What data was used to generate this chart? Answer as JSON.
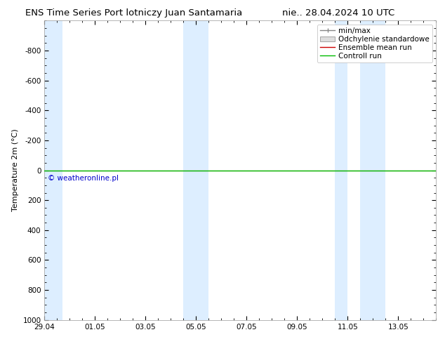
{
  "title_left": "ENS Time Series Port lotniczy Juan Santamaria",
  "title_right": "nie.. 28.04.2024 10 UTC",
  "ylabel": "Temperature 2m (°C)",
  "ylim_top": -1000,
  "ylim_bottom": 1000,
  "yticks": [
    -800,
    -600,
    -400,
    -200,
    0,
    200,
    400,
    600,
    800,
    1000
  ],
  "xtick_labels": [
    "29.04",
    "01.05",
    "03.05",
    "05.05",
    "07.05",
    "09.05",
    "11.05",
    "13.05"
  ],
  "xtick_positions": [
    0,
    2,
    4,
    6,
    8,
    10,
    12,
    14
  ],
  "xlim": [
    0,
    15.5
  ],
  "shaded_bands": [
    [
      -0.1,
      0.7
    ],
    [
      5.5,
      6.0
    ],
    [
      6.0,
      6.5
    ],
    [
      11.5,
      12.0
    ],
    [
      12.5,
      13.5
    ]
  ],
  "shaded_color": "#ddeeff",
  "green_line_color": "#00bb00",
  "red_line_color": "#cc0000",
  "background_color": "#ffffff",
  "copyright_text": "© weatheronline.pl",
  "copyright_color": "#0000cc",
  "legend_entries": [
    "min/max",
    "Odchylenie standardowe",
    "Ensemble mean run",
    "Controll run"
  ],
  "legend_line_color": "#888888",
  "legend_fill_color": "#dddddd",
  "legend_red": "#cc0000",
  "legend_green": "#00bb00",
  "title_fontsize": 9.5,
  "axis_label_fontsize": 8,
  "tick_fontsize": 7.5,
  "legend_fontsize": 7.5,
  "copyright_fontsize": 7.5
}
